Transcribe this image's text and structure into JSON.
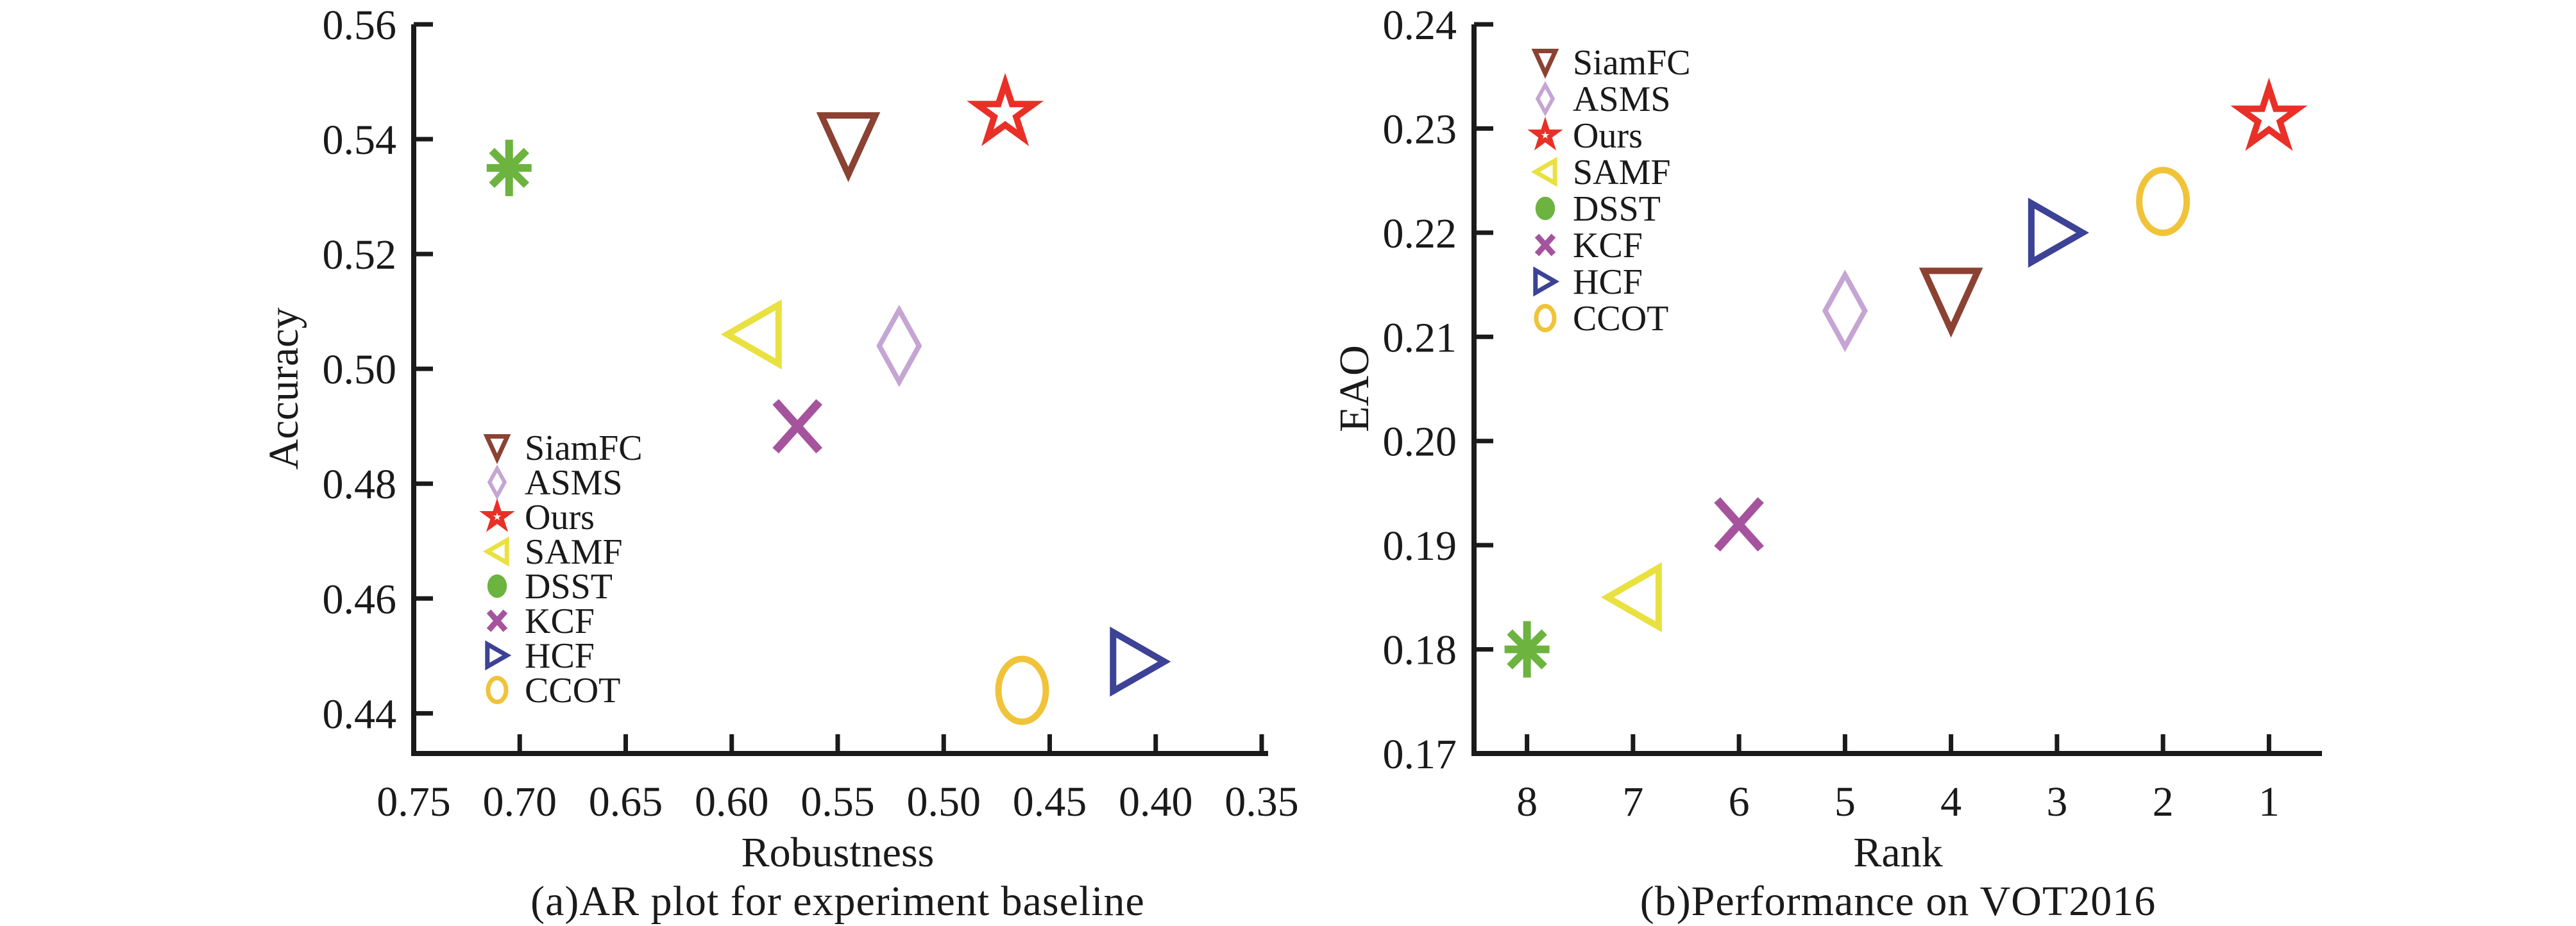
{
  "figure": {
    "background": "#ffffff",
    "text_color": "#1a1a1a",
    "axis_color": "#1a1a1a"
  },
  "chart_data": [
    {
      "type": "scatter",
      "caption": "(a)AR plot for experiment baseline",
      "xlabel": "Robustness",
      "ylabel": "Accuracy",
      "x_axis_reversed": true,
      "xlim": [
        0.75,
        0.35
      ],
      "ylim": [
        0.433,
        0.56
      ],
      "x_ticks": [
        0.75,
        0.7,
        0.65,
        0.6,
        0.55,
        0.5,
        0.45,
        0.4,
        0.35
      ],
      "x_tick_decimals": 2,
      "y_ticks": [
        0.56,
        0.54,
        0.52,
        0.5,
        0.48,
        0.46,
        0.44
      ],
      "y_tick_decimals": 2,
      "grid": false,
      "legend_position": "inside-left-middle",
      "series": [
        {
          "name": "SiamFC",
          "marker": "triangle-down",
          "color": "#8B4232",
          "x": 0.545,
          "y": 0.539
        },
        {
          "name": "ASMS",
          "marker": "diamond",
          "color": "#C5A5D3",
          "x": 0.521,
          "y": 0.504
        },
        {
          "name": "Ours",
          "marker": "star",
          "color": "#E83027",
          "x": 0.471,
          "y": 0.5445
        },
        {
          "name": "SAMF",
          "marker": "triangle-left",
          "color": "#E9E13F",
          "x": 0.59,
          "y": 0.506
        },
        {
          "name": "DSST",
          "marker": "asterisk",
          "legend_marker": "ellipse-filled",
          "color": "#6CB33F",
          "x": 0.705,
          "y": 0.535
        },
        {
          "name": "KCF",
          "marker": "x-cross",
          "color": "#A6539E",
          "x": 0.569,
          "y": 0.49
        },
        {
          "name": "HCF",
          "marker": "triangle-right",
          "color": "#3C4295",
          "x": 0.408,
          "y": 0.449
        },
        {
          "name": "CCOT",
          "marker": "ellipse",
          "color": "#F0C339",
          "x": 0.463,
          "y": 0.444
        }
      ]
    },
    {
      "type": "scatter",
      "caption": "(b)Performance on VOT2016",
      "xlabel": "Rank",
      "ylabel": "EAO",
      "x_axis_reversed": true,
      "xlim": [
        8.5,
        0.5
      ],
      "ylim": [
        0.17,
        0.24
      ],
      "x_ticks": [
        8,
        7,
        6,
        5,
        4,
        3,
        2,
        1
      ],
      "x_tick_decimals": 0,
      "y_ticks": [
        0.24,
        0.23,
        0.22,
        0.21,
        0.2,
        0.19,
        0.18,
        0.17
      ],
      "y_tick_decimals": 2,
      "grid": false,
      "legend_position": "inside-left-top",
      "series": [
        {
          "name": "SiamFC",
          "marker": "triangle-down",
          "color": "#8B4232",
          "x": 4,
          "y": 0.2135
        },
        {
          "name": "ASMS",
          "marker": "diamond",
          "color": "#C5A5D3",
          "x": 5,
          "y": 0.2125
        },
        {
          "name": "Ours",
          "marker": "star",
          "color": "#E83027",
          "x": 1,
          "y": 0.231
        },
        {
          "name": "SAMF",
          "marker": "triangle-left",
          "color": "#E9E13F",
          "x": 7,
          "y": 0.185
        },
        {
          "name": "DSST",
          "marker": "asterisk",
          "legend_marker": "ellipse-filled",
          "color": "#6CB33F",
          "x": 8,
          "y": 0.18
        },
        {
          "name": "KCF",
          "marker": "x-cross",
          "color": "#A6539E",
          "x": 6,
          "y": 0.192
        },
        {
          "name": "HCF",
          "marker": "triangle-right",
          "color": "#3C4295",
          "x": 3,
          "y": 0.22
        },
        {
          "name": "CCOT",
          "marker": "ellipse",
          "color": "#F0C339",
          "x": 2,
          "y": 0.223
        }
      ]
    }
  ]
}
